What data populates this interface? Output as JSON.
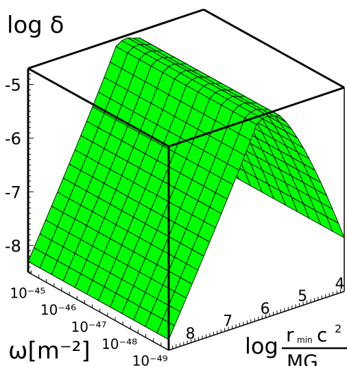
{
  "chart_data": {
    "type": "surface3d",
    "z_axis": {
      "label": "log δ",
      "ticks": [
        {
          "value": -5,
          "label": "-5"
        },
        {
          "value": -6,
          "label": "-6"
        },
        {
          "value": -7,
          "label": "-7"
        },
        {
          "value": -8,
          "label": "-8"
        }
      ],
      "range": [
        -8.5,
        -4.7
      ]
    },
    "y_axis": {
      "label": "ω[m⁻²]",
      "ticks": [
        {
          "value": -45,
          "label": "10⁻⁴⁵"
        },
        {
          "value": -46,
          "label": "10⁻⁴⁶"
        },
        {
          "value": -47,
          "label": "10⁻⁴⁷"
        },
        {
          "value": -48,
          "label": "10⁻⁴⁸"
        },
        {
          "value": -49,
          "label": "10⁻⁴⁹"
        }
      ],
      "range": [
        -49.3,
        -44.7
      ],
      "scale": "log"
    },
    "x_axis": {
      "label_prefix": "log",
      "label_numerator": "r",
      "label_numerator_sub": "min",
      "label_numerator_tail": "c",
      "label_numerator_sup": "2",
      "label_denominator": "MG",
      "ticks": [
        {
          "value": 4,
          "label": "4"
        },
        {
          "value": 5,
          "label": "5"
        },
        {
          "value": 6,
          "label": "6"
        },
        {
          "value": 7,
          "label": "7"
        },
        {
          "value": 8,
          "label": "8"
        }
      ],
      "range": [
        3.9,
        8.6
      ]
    },
    "surface": {
      "color": "#00ff00",
      "wire_color": "#000000",
      "description_peak_x": [
        5.75,
        6.2
      ],
      "z_at_peak": -4.75,
      "z_at_x_min_end": -7.5,
      "z_at_x_max_end": -8.3,
      "omega_slope_per_decade": 0.0
    },
    "box": "on"
  }
}
